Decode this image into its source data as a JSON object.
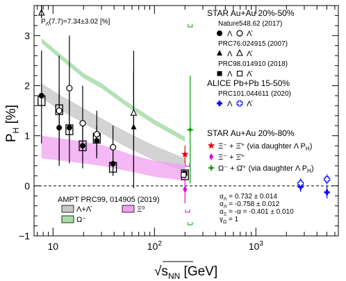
{
  "chart_data": {
    "type": "scatter",
    "xlabel_main": "√s",
    "xlabel_sub": "NN",
    "xlabel_unit": " [GeV]",
    "ylabel_main": "P",
    "ylabel_sub": "H",
    "ylabel_unit": " [%]",
    "x_scale": "log",
    "xlim": [
      6.5,
      6500
    ],
    "ylim": [
      -1,
      3.6
    ],
    "x_tick_labels": [
      {
        "value": 10,
        "base": "10",
        "exp": ""
      },
      {
        "value": 100,
        "base": "10",
        "exp": "2"
      },
      {
        "value": 1000,
        "base": "10",
        "exp": "3"
      }
    ],
    "y_ticks": [
      -1,
      0,
      1,
      2,
      3
    ],
    "zero_line": "dashed",
    "top_annotation": {
      "prefix": "P",
      "sub": "Λ̄",
      "rest": "(7.7)=7.34±3.02 [%]"
    },
    "legend_blocks": [
      {
        "header": "STAR Au+Au 20%-50%",
        "ref": "Nature548.62 (2017)",
        "items": [
          {
            "marker": "circle-filled",
            "label": "Λ"
          },
          {
            "marker": "circle-open",
            "label": "Λ̄"
          }
        ]
      },
      {
        "header": "",
        "ref": "PRC76.024915 (2007)",
        "items": [
          {
            "marker": "triangle-filled",
            "label": "Λ"
          },
          {
            "marker": "triangle-open",
            "label": "Λ̄"
          }
        ]
      },
      {
        "header": "",
        "ref": "PRC98.014910 (2018)",
        "items": [
          {
            "marker": "square-filled",
            "label": "Λ"
          },
          {
            "marker": "square-open",
            "label": "Λ̄"
          }
        ]
      },
      {
        "header": "ALICE Pb+Pb 15-50%",
        "ref": "PRC101.044611 (2020)",
        "items": [
          {
            "marker": "cross-filled",
            "label": "Λ"
          },
          {
            "marker": "cross-open",
            "label": "Λ̄"
          }
        ]
      }
    ],
    "star_2080": {
      "header": "STAR Au+Au 20%-80%",
      "items": [
        {
          "marker": "star",
          "color": "#e8000b",
          "label": "Ξ⁻ + Ξ̄⁺ (via daughter Λ P",
          "label_sub": "H",
          "label_end": ")"
        },
        {
          "marker": "diamond",
          "color": "#e000e0",
          "label": "Ξ⁻ + Ξ̄⁺",
          "label_sub": "",
          "label_end": ""
        },
        {
          "marker": "star4",
          "color": "#00a000",
          "label": "Ω⁻ + Ω̄⁺ (via daughter Λ P",
          "label_sub": "H",
          "label_end": ")"
        }
      ]
    },
    "ampt": {
      "title": "AMPT PRC99, 014905 (2019)",
      "items": [
        {
          "label": "Λ+Λ̄",
          "color": "#c8c8c8"
        },
        {
          "label": "Ξ⁰",
          "color": "#f0a0f0"
        },
        {
          "label": "Ω⁻",
          "color": "#a8dca8"
        }
      ]
    },
    "alphas": [
      {
        "sym": "α",
        "sub": "Λ",
        "text": " =  0.732 ± 0.014"
      },
      {
        "sym": "α",
        "sub": "Λ̄",
        "text": " = -0.758 ± 0.012"
      },
      {
        "sym": "α",
        "sub": "Ξ",
        "text": " = -α  = -0.401 ± 0.010"
      },
      {
        "sym": "γ",
        "sub": "Ω",
        "text": " = 1"
      }
    ],
    "series": [
      {
        "name": "Λ (Nature548.62)",
        "marker": "circle-filled",
        "color": "#000000",
        "points": [
          {
            "x": 7.7,
            "y": 1.8,
            "lo": 0.85,
            "hi": 2.7
          },
          {
            "x": 11.5,
            "y": 1.16,
            "lo": 0.5,
            "hi": 1.9
          },
          {
            "x": 14.5,
            "y": 1.16,
            "lo": 0.45,
            "hi": 1.85
          },
          {
            "x": 19.6,
            "y": 0.8,
            "lo": 0.35,
            "hi": 1.25
          },
          {
            "x": 27,
            "y": 0.9,
            "lo": 0.6,
            "hi": 1.2
          },
          {
            "x": 39,
            "y": 0.44,
            "lo": 0.2,
            "hi": 0.7
          }
        ]
      },
      {
        "name": "Λ̄ (Nature548.62)",
        "marker": "circle-open",
        "color": "#000000",
        "points": [
          {
            "x": 11.5,
            "y": 1.5,
            "lo": 0.4,
            "hi": 2.6
          },
          {
            "x": 14.5,
            "y": 1.95,
            "lo": 0.9,
            "hi": 3.0
          },
          {
            "x": 19.6,
            "y": 1.25,
            "lo": 0.5,
            "hi": 2.0
          },
          {
            "x": 27,
            "y": 1.03,
            "lo": 0.55,
            "hi": 1.5
          },
          {
            "x": 39,
            "y": 0.77,
            "lo": 0.35,
            "hi": 1.2
          }
        ]
      },
      {
        "name": "Λ (PRC76)",
        "marker": "triangle-filled",
        "color": "#000000",
        "points": [
          {
            "x": 62.4,
            "y": 1.17,
            "lo": -0.05,
            "hi": 2.3
          }
        ]
      },
      {
        "name": "Λ̄ (PRC76)",
        "marker": "triangle-open",
        "color": "#000000",
        "points": [
          {
            "x": 62.4,
            "y": 1.45,
            "lo": 0.2,
            "hi": 2.7
          },
          {
            "x": 7.7,
            "y": 3.45,
            "lo": 3.35,
            "hi": 3.6
          }
        ]
      },
      {
        "name": "Λ (PRC98)",
        "marker": "square-filled",
        "color": "#000000",
        "points": [
          {
            "x": 200,
            "y": 0.25,
            "lo": 0.2,
            "hi": 0.3
          }
        ]
      },
      {
        "name": "Λ̄ (PRC98)",
        "marker": "square-open",
        "color": "#000000",
        "points": [
          {
            "x": 194,
            "y": 0.22,
            "lo": 0.17,
            "hi": 0.27
          }
        ]
      },
      {
        "name": "Λ (ALICE)",
        "marker": "cross-filled",
        "color": "#0000ff",
        "points": [
          {
            "x": 2760,
            "y": -0.02,
            "lo": -0.12,
            "hi": 0.1
          },
          {
            "x": 5020,
            "y": -0.13,
            "lo": -0.25,
            "hi": 0.0
          }
        ]
      },
      {
        "name": "Λ̄ (ALICE)",
        "marker": "cross-open",
        "color": "#0000ff",
        "points": [
          {
            "x": 2760,
            "y": 0.05,
            "lo": -0.05,
            "hi": 0.15
          },
          {
            "x": 5020,
            "y": 0.13,
            "lo": 0.03,
            "hi": 0.23
          }
        ]
      },
      {
        "name": "Ξ via Λ",
        "marker": "star",
        "color": "#e8000b",
        "points": [
          {
            "x": 200,
            "y": 0.63,
            "lo": 0.45,
            "hi": 0.8
          }
        ]
      },
      {
        "name": "Ξ direct",
        "marker": "diamond",
        "color": "#e000e0",
        "points": [
          {
            "x": 200,
            "y": -0.07,
            "lo": -0.35,
            "hi": 0.22
          }
        ]
      },
      {
        "name": "Ω via Λ",
        "marker": "star4",
        "color": "#00a000",
        "points": [
          {
            "x": 225,
            "y": 1.12,
            "lo": 0.05,
            "hi": 2.2
          }
        ]
      }
    ],
    "boxes": [
      {
        "x": 7.7,
        "y": 1.7
      },
      {
        "x": 11.5,
        "y": 1.52
      },
      {
        "x": 14.5,
        "y": 1.12
      },
      {
        "x": 19.6,
        "y": 0.8
      },
      {
        "x": 27,
        "y": 0.95
      },
      {
        "x": 39,
        "y": 0.37
      },
      {
        "x": 200,
        "y": 0.22
      }
    ],
    "syst_brackets": [
      {
        "x": 225,
        "y": 3.2,
        "color": "#00a000"
      },
      {
        "x": 225,
        "y": -0.75,
        "color": "#00a000"
      },
      {
        "x": 212,
        "y": 0.42,
        "color": "#e000e0"
      },
      {
        "x": 212,
        "y": -0.5,
        "color": "#e000e0"
      }
    ],
    "bands": [
      {
        "name": "AMPT Λ+Λ̄",
        "color": "#c8c8c8",
        "opacity": 0.8,
        "upper": [
          [
            7.7,
            2.05
          ],
          [
            12,
            1.8
          ],
          [
            20,
            1.55
          ],
          [
            30,
            1.35
          ],
          [
            50,
            1.1
          ],
          [
            100,
            0.8
          ],
          [
            200,
            0.55
          ]
        ],
        "lower": [
          [
            7.7,
            1.75
          ],
          [
            12,
            1.5
          ],
          [
            20,
            1.25
          ],
          [
            30,
            1.05
          ],
          [
            50,
            0.8
          ],
          [
            100,
            0.5
          ],
          [
            200,
            0.28
          ]
        ]
      },
      {
        "name": "AMPT Ξ⁰",
        "color": "#f0a0f0",
        "opacity": 0.75,
        "upper": [
          [
            7.7,
            1.0
          ],
          [
            15,
            0.92
          ],
          [
            30,
            0.82
          ],
          [
            60,
            0.62
          ],
          [
            100,
            0.5
          ],
          [
            200,
            0.42
          ]
        ],
        "lower": [
          [
            7.7,
            0.55
          ],
          [
            15,
            0.48
          ],
          [
            30,
            0.4
          ],
          [
            60,
            0.28
          ],
          [
            100,
            0.18
          ],
          [
            200,
            0.1
          ]
        ]
      },
      {
        "name": "AMPT Ω⁻",
        "color": "#a8dca8",
        "opacity": 0.85,
        "upper": [
          [
            7.7,
            2.95
          ],
          [
            12,
            2.62
          ],
          [
            20,
            2.25
          ],
          [
            30,
            2.05
          ],
          [
            50,
            1.72
          ],
          [
            100,
            1.32
          ],
          [
            200,
            0.98
          ]
        ],
        "lower": [
          [
            7.7,
            2.85
          ],
          [
            12,
            2.52
          ],
          [
            20,
            2.15
          ],
          [
            30,
            1.95
          ],
          [
            50,
            1.62
          ],
          [
            100,
            1.22
          ],
          [
            200,
            0.88
          ]
        ]
      }
    ]
  }
}
